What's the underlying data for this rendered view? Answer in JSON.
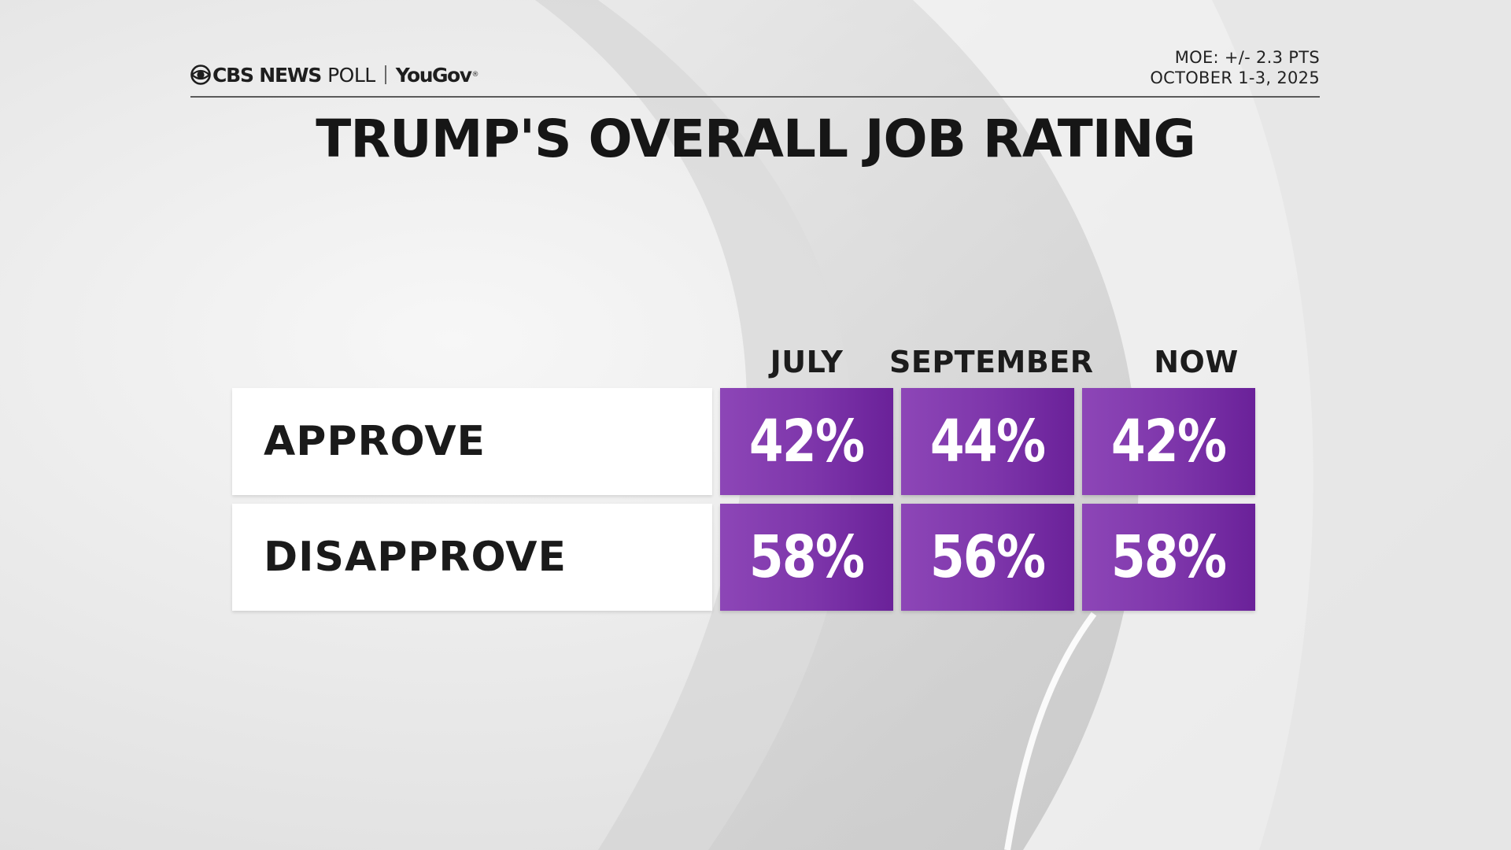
{
  "brand": {
    "cbs": "CBS NEWS",
    "poll": "POLL",
    "partner": "YouGov",
    "partner_mark": "®"
  },
  "meta": {
    "moe": "MOE: +/- 2.3 PTS",
    "dates": "OCTOBER 1-3, 2025"
  },
  "colors": {
    "cell_light": "#8d46b7",
    "cell_dark": "#6a2199",
    "text_dark": "#1a1a1a",
    "label_bg": "#ffffff"
  },
  "chart_data": {
    "type": "table",
    "title": "TRUMP'S OVERALL JOB RATING",
    "columns": [
      "JULY",
      "SEPTEMBER",
      "NOW"
    ],
    "rows": [
      {
        "label": "APPROVE",
        "values": [
          42,
          44,
          42
        ]
      },
      {
        "label": "DISAPPROVE",
        "values": [
          58,
          56,
          58
        ]
      }
    ],
    "unit": "%"
  }
}
